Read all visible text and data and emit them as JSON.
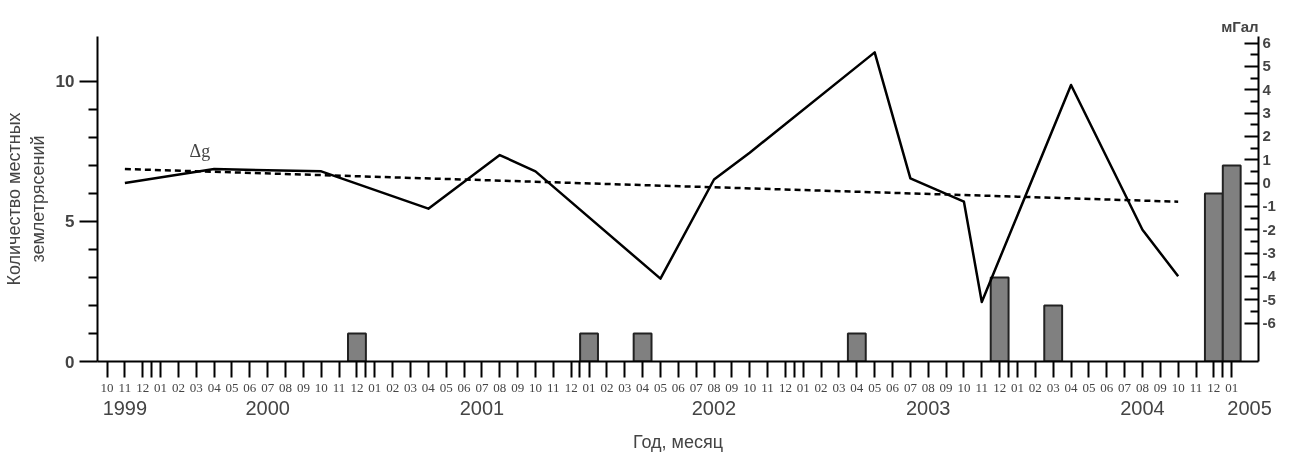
{
  "chart_data": {
    "type": "bar",
    "xlabel": "Год, месяц",
    "ylabel": "Количество местных\nземлетрясений",
    "y2label": "мГал",
    "xlim": [
      "1999-09-15",
      "2005-02-15"
    ],
    "xticks": [
      {
        "value": "1999-10",
        "label": "10"
      },
      {
        "value": "1999-11",
        "label": "11"
      },
      {
        "value": "1999-12",
        "label": "12"
      },
      {
        "value": "2000-01",
        "label": "01"
      },
      {
        "value": "2000-02",
        "label": "02"
      },
      {
        "value": "2000-03",
        "label": "03"
      },
      {
        "value": "2000-04",
        "label": "04"
      },
      {
        "value": "2000-05",
        "label": "05"
      },
      {
        "value": "2000-06",
        "label": "06"
      },
      {
        "value": "2000-07",
        "label": "07"
      },
      {
        "value": "2000-08",
        "label": "08"
      },
      {
        "value": "2000-09",
        "label": "09"
      },
      {
        "value": "2000-10",
        "label": "10"
      },
      {
        "value": "2000-11",
        "label": "11"
      },
      {
        "value": "2000-12",
        "label": "12"
      },
      {
        "value": "2001-01",
        "label": "01"
      },
      {
        "value": "2001-02",
        "label": "02"
      },
      {
        "value": "2001-03",
        "label": "03"
      },
      {
        "value": "2001-04",
        "label": "04"
      },
      {
        "value": "2001-05",
        "label": "05"
      },
      {
        "value": "2001-06",
        "label": "06"
      },
      {
        "value": "2001-07",
        "label": "07"
      },
      {
        "value": "2001-08",
        "label": "08"
      },
      {
        "value": "2001-09",
        "label": "09"
      },
      {
        "value": "2001-10",
        "label": "10"
      },
      {
        "value": "2001-11",
        "label": "11"
      },
      {
        "value": "2001-12",
        "label": "12"
      },
      {
        "value": "2002-01",
        "label": "01"
      },
      {
        "value": "2002-02",
        "label": "02"
      },
      {
        "value": "2002-03",
        "label": "03"
      },
      {
        "value": "2002-04",
        "label": "04"
      },
      {
        "value": "2002-05",
        "label": "05"
      },
      {
        "value": "2002-06",
        "label": "06"
      },
      {
        "value": "2002-07",
        "label": "07"
      },
      {
        "value": "2002-08",
        "label": "08"
      },
      {
        "value": "2002-09",
        "label": "09"
      },
      {
        "value": "2002-10",
        "label": "10"
      },
      {
        "value": "2002-11",
        "label": "11"
      },
      {
        "value": "2002-12",
        "label": "12"
      },
      {
        "value": "2003-01",
        "label": "01"
      },
      {
        "value": "2003-02",
        "label": "02"
      },
      {
        "value": "2003-03",
        "label": "03"
      },
      {
        "value": "2003-04",
        "label": "04"
      },
      {
        "value": "2003-05",
        "label": "05"
      },
      {
        "value": "2003-06",
        "label": "06"
      },
      {
        "value": "2003-07",
        "label": "07"
      },
      {
        "value": "2003-08",
        "label": "08"
      },
      {
        "value": "2003-09",
        "label": "09"
      },
      {
        "value": "2003-10",
        "label": "10"
      },
      {
        "value": "2003-11",
        "label": "11"
      },
      {
        "value": "2003-12",
        "label": "12"
      },
      {
        "value": "2004-01",
        "label": "01"
      },
      {
        "value": "2004-02",
        "label": "02"
      },
      {
        "value": "2004-03",
        "label": "03"
      },
      {
        "value": "2004-04",
        "label": "04"
      },
      {
        "value": "2004-05",
        "label": "05"
      },
      {
        "value": "2004-06",
        "label": "06"
      },
      {
        "value": "2004-07",
        "label": "07"
      },
      {
        "value": "2004-08",
        "label": "08"
      },
      {
        "value": "2004-09",
        "label": "09"
      },
      {
        "value": "2004-10",
        "label": "10"
      },
      {
        "value": "2004-11",
        "label": "11"
      },
      {
        "value": "2004-12",
        "label": "12"
      },
      {
        "value": "2005-01",
        "label": "01"
      },
      {
        "value": "1999-12-16",
        "label": null
      },
      {
        "value": "2000-12-16",
        "label": null
      },
      {
        "value": "2001-12-16",
        "label": null
      },
      {
        "value": "2002-12-16",
        "label": null
      },
      {
        "value": "2003-12-16",
        "label": null
      },
      {
        "value": "2004-12-16",
        "label": null
      }
    ],
    "x2lim": [
      "1999-09-15",
      "2005-02-15"
    ],
    "x2ticks": [
      {
        "value": "1999-11",
        "label": "1999"
      },
      {
        "value": "2000-07",
        "label": "2000"
      },
      {
        "value": "2001-07",
        "label": "2001"
      },
      {
        "value": "2002-08",
        "label": "2002"
      },
      {
        "value": "2003-08",
        "label": "2003"
      },
      {
        "value": "2004-08",
        "label": "2004"
      },
      {
        "value": "2005-02",
        "label": "2005"
      }
    ],
    "ylim": [
      0,
      11.6
    ],
    "yticks": [
      0,
      {
        "value": 1,
        "label": null
      },
      {
        "value": 2,
        "label": null
      },
      {
        "value": 3,
        "label": null
      },
      {
        "value": 4,
        "label": null
      },
      5,
      {
        "value": 6,
        "label": null
      },
      {
        "value": 7,
        "label": null
      },
      {
        "value": 8,
        "label": null
      },
      {
        "value": 9,
        "label": null
      },
      10
    ],
    "y2lim": [
      -7.65,
      6.28
    ],
    "y2ticks": [
      -6,
      {
        "value": -5.5,
        "label": null
      },
      -5,
      {
        "value": -4.5,
        "label": null
      },
      -4,
      {
        "value": -3.5,
        "label": null
      },
      -3,
      {
        "value": -2.5,
        "label": null
      },
      -2,
      {
        "value": -1.5,
        "label": null
      },
      -1,
      {
        "value": -0.5,
        "label": null
      },
      0,
      {
        "value": 0.5,
        "label": null
      },
      1,
      {
        "value": 1.5,
        "label": null
      },
      2,
      {
        "value": 2.5,
        "label": null
      },
      3,
      {
        "value": 3.5,
        "label": null
      },
      4,
      {
        "value": 4.5,
        "label": null
      },
      5,
      {
        "value": 5.5,
        "label": null
      },
      6
    ],
    "series": [
      {
        "color": "#808080",
        "x": [
          "2000-12",
          "2002-01",
          "2002-04",
          "2003-04",
          "2003-12",
          "2004-03",
          "2004-12",
          "2005-01"
        ],
        "values": [
          1,
          1,
          1,
          1,
          3,
          2,
          6,
          7
        ]
      },
      {
        "type": "line",
        "name": "Δg",
        "axis": "y2",
        "color": "#000000",
        "line_style": "solid",
        "x": [
          "1999-11",
          "2000-04",
          "2000-10",
          "2001-04",
          "2001-08",
          "2001-10",
          "2002-05",
          "2002-08",
          "2002-10",
          "2003-05",
          "2003-07",
          "2003-10",
          "2003-11",
          "2004-04",
          "2004-08",
          "2004-10"
        ],
        "values": [
          0.0,
          0.6,
          0.5,
          -1.1,
          1.2,
          0.5,
          -4.1,
          0.15,
          1.3,
          5.6,
          0.2,
          -0.8,
          -5.1,
          4.2,
          -2.0,
          -4.0
        ]
      },
      {
        "type": "line",
        "axis": "y2",
        "color": "#000000",
        "line_style": "dashed",
        "x": [
          "1999-11",
          "2004-10"
        ],
        "values": [
          0.6,
          -0.8
        ]
      }
    ],
    "grid": false,
    "marker": "none"
  }
}
